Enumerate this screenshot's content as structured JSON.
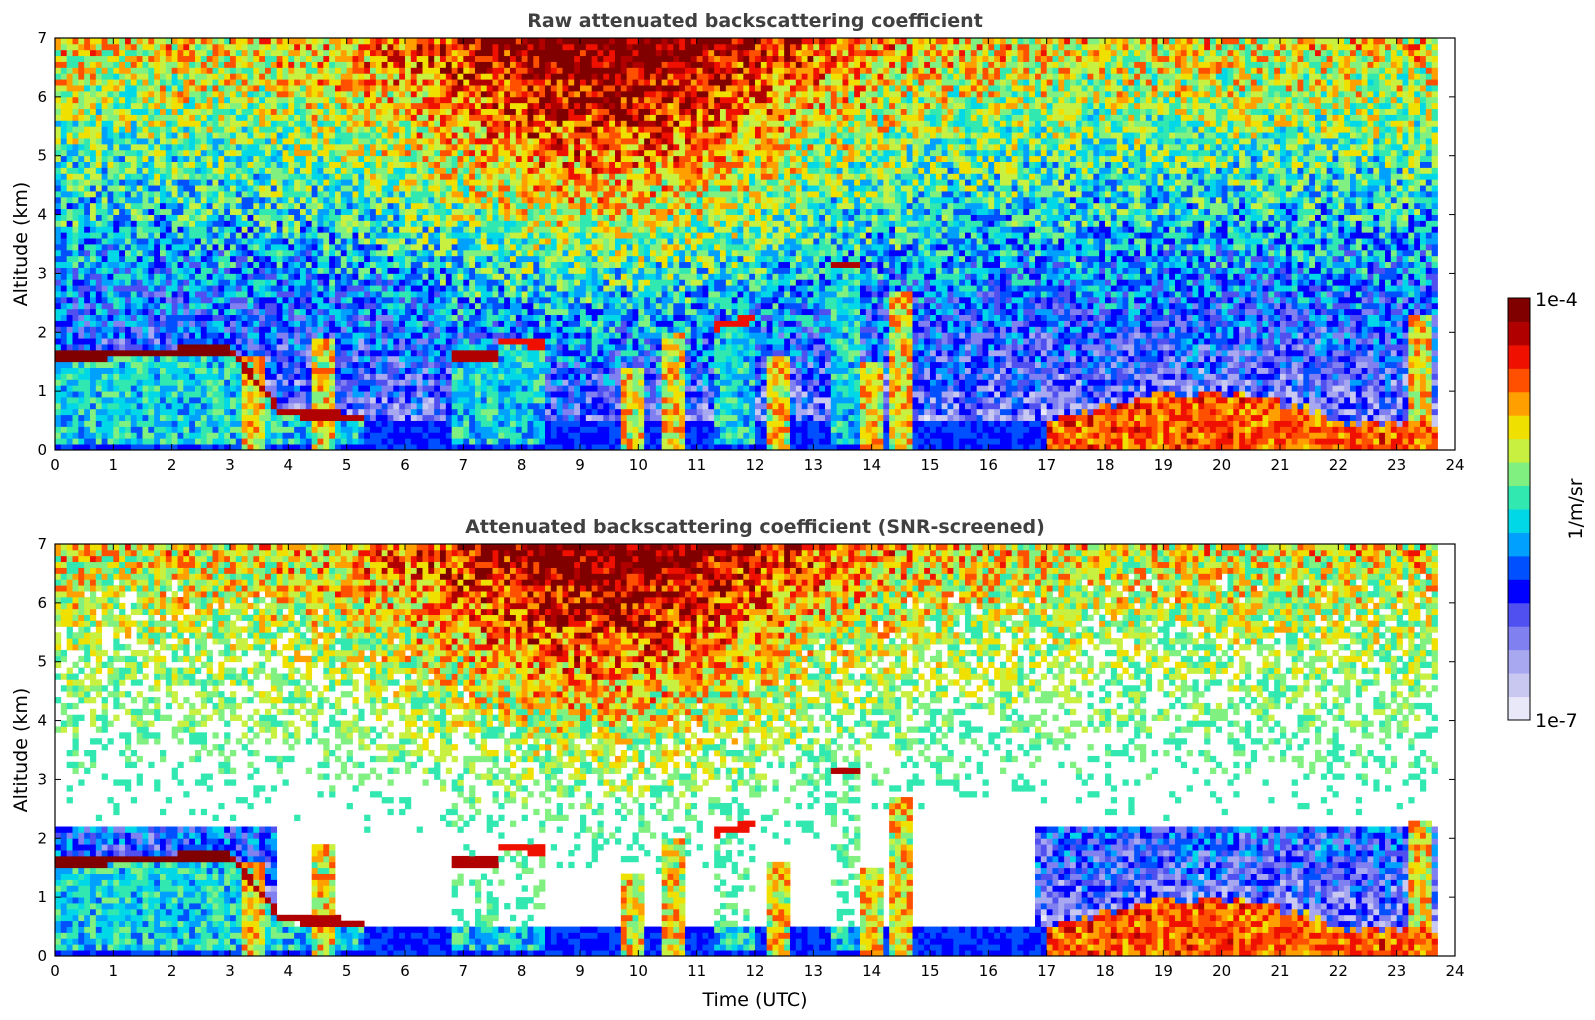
{
  "chart_data": [
    {
      "type": "heatmap",
      "title": "Raw attenuated backscattering coefficient",
      "xlabel": "",
      "ylabel": "Altitude (km)",
      "xlim": [
        0,
        24
      ],
      "ylim": [
        0,
        7
      ],
      "x_ticks": [
        "0",
        "1",
        "2",
        "3",
        "4",
        "5",
        "6",
        "7",
        "8",
        "9",
        "10",
        "11",
        "12",
        "13",
        "14",
        "15",
        "16",
        "17",
        "18",
        "19",
        "20",
        "21",
        "22",
        "23",
        "24"
      ],
      "y_ticks": [
        "0",
        "1",
        "2",
        "3",
        "4",
        "5",
        "6",
        "7"
      ],
      "colorscale": "jet",
      "features": [
        {
          "kind": "cloud_layer",
          "t_start": 0.0,
          "t_end": 3.0,
          "alt_start": 1.58,
          "alt_end": 1.72,
          "intensity": 1.0
        },
        {
          "kind": "cloud_layer",
          "t_start": 3.0,
          "t_end": 3.8,
          "alt_start": 1.7,
          "alt_end": 0.75,
          "intensity": 0.95
        },
        {
          "kind": "cloud_layer",
          "t_start": 3.8,
          "t_end": 5.3,
          "alt_start": 0.65,
          "alt_end": 0.55,
          "intensity": 0.95
        },
        {
          "kind": "cloud_layer",
          "t_start": 6.8,
          "t_end": 7.6,
          "alt_start": 1.6,
          "alt_end": 1.6,
          "intensity": 0.95
        },
        {
          "kind": "cloud_layer",
          "t_start": 7.6,
          "t_end": 8.4,
          "alt_start": 1.85,
          "alt_end": 1.8,
          "intensity": 0.9
        },
        {
          "kind": "cloud_layer",
          "t_start": 11.3,
          "t_end": 12.0,
          "alt_start": 2.1,
          "alt_end": 2.25,
          "intensity": 0.9
        },
        {
          "kind": "cloud_layer",
          "t_start": 13.3,
          "t_end": 13.8,
          "alt_start": 3.15,
          "alt_end": 3.15,
          "intensity": 0.95
        },
        {
          "kind": "boundary_layer",
          "t_start": 17.0,
          "t_end": 23.7,
          "alt_top": 0.4,
          "intensity": 0.8
        }
      ]
    },
    {
      "type": "heatmap",
      "title": "Attenuated backscattering coefficient (SNR-screened)",
      "xlabel": "Time (UTC)",
      "ylabel": "Altitude (km)",
      "xlim": [
        0,
        24
      ],
      "ylim": [
        0,
        7
      ],
      "x_ticks": [
        "0",
        "1",
        "2",
        "3",
        "4",
        "5",
        "6",
        "7",
        "8",
        "9",
        "10",
        "11",
        "12",
        "13",
        "14",
        "15",
        "16",
        "17",
        "18",
        "19",
        "20",
        "21",
        "22",
        "23",
        "24"
      ],
      "y_ticks": [
        "0",
        "1",
        "2",
        "3",
        "4",
        "5",
        "6",
        "7"
      ],
      "colorscale": "jet"
    }
  ],
  "colorbar": {
    "label": "1/m/sr",
    "max_label": "1e-4",
    "min_label": "1e-7",
    "colors": [
      "#e8e8f8",
      "#c8c8f0",
      "#a8a8f0",
      "#8080f0",
      "#5050f0",
      "#0000ff",
      "#0050ff",
      "#00a0ff",
      "#00d8e8",
      "#30e8b0",
      "#80f080",
      "#c8f040",
      "#f0e000",
      "#ffa000",
      "#ff5000",
      "#f01000",
      "#b00000",
      "#800000"
    ]
  }
}
